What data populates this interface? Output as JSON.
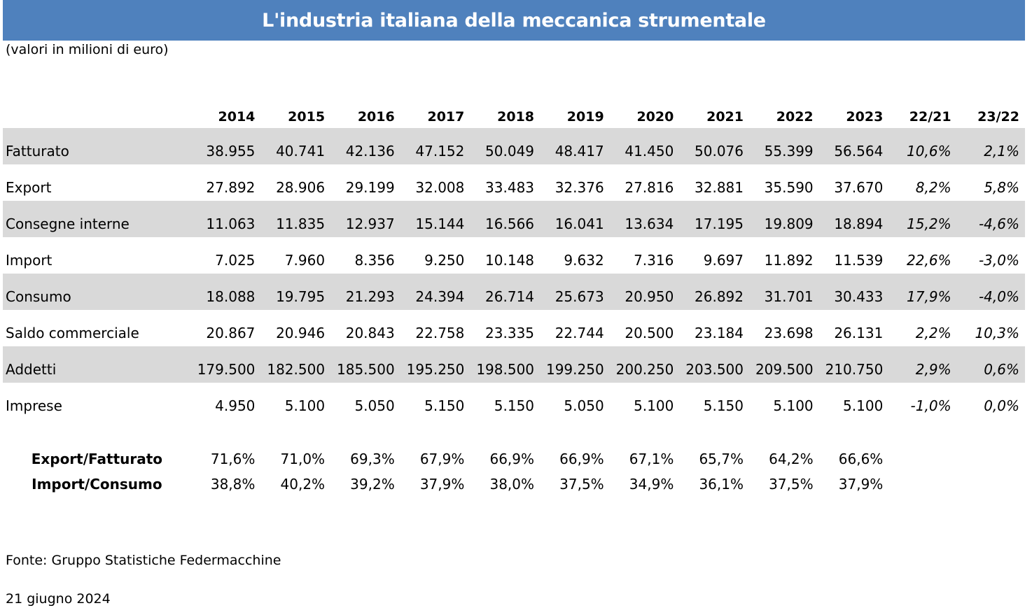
{
  "title": "L'industria italiana della meccanica strumentale",
  "subtitle": "(valori in milioni di euro)",
  "columns": [
    "2014",
    "2015",
    "2016",
    "2017",
    "2018",
    "2019",
    "2020",
    "2021",
    "2022",
    "2023",
    "22/21",
    "23/22"
  ],
  "rows": [
    {
      "label": "Fatturato",
      "values": [
        "38.955",
        "40.741",
        "42.136",
        "47.152",
        "50.049",
        "48.417",
        "41.450",
        "50.076",
        "55.399",
        "56.564",
        "10,6%",
        "2,1%"
      ]
    },
    {
      "label": "Export",
      "values": [
        "27.892",
        "28.906",
        "29.199",
        "32.008",
        "33.483",
        "32.376",
        "27.816",
        "32.881",
        "35.590",
        "37.670",
        "8,2%",
        "5,8%"
      ]
    },
    {
      "label": "Consegne interne",
      "values": [
        "11.063",
        "11.835",
        "12.937",
        "15.144",
        "16.566",
        "16.041",
        "13.634",
        "17.195",
        "19.809",
        "18.894",
        "15,2%",
        "-4,6%"
      ]
    },
    {
      "label": "Import",
      "values": [
        "7.025",
        "7.960",
        "8.356",
        "9.250",
        "10.148",
        "9.632",
        "7.316",
        "9.697",
        "11.892",
        "11.539",
        "22,6%",
        "-3,0%"
      ]
    },
    {
      "label": "Consumo",
      "values": [
        "18.088",
        "19.795",
        "21.293",
        "24.394",
        "26.714",
        "25.673",
        "20.950",
        "26.892",
        "31.701",
        "30.433",
        "17,9%",
        "-4,0%"
      ]
    },
    {
      "label": "Saldo commerciale",
      "values": [
        "20.867",
        "20.946",
        "20.843",
        "22.758",
        "23.335",
        "22.744",
        "20.500",
        "23.184",
        "23.698",
        "26.131",
        "2,2%",
        "10,3%"
      ]
    },
    {
      "label": "Addetti",
      "values": [
        "179.500",
        "182.500",
        "185.500",
        "195.250",
        "198.500",
        "199.250",
        "200.250",
        "203.500",
        "209.500",
        "210.750",
        "2,9%",
        "0,6%"
      ]
    },
    {
      "label": "Imprese",
      "values": [
        "4.950",
        "5.100",
        "5.050",
        "5.150",
        "5.150",
        "5.050",
        "5.100",
        "5.150",
        "5.100",
        "5.100",
        "-1,0%",
        "0,0%"
      ]
    }
  ],
  "ratios": [
    {
      "label": "Export/Fatturato",
      "values": [
        "71,6%",
        "71,0%",
        "69,3%",
        "67,9%",
        "66,9%",
        "66,9%",
        "67,1%",
        "65,7%",
        "64,2%",
        "66,6%"
      ]
    },
    {
      "label": "Import/Consumo",
      "values": [
        "38,8%",
        "40,2%",
        "39,2%",
        "37,9%",
        "38,0%",
        "37,5%",
        "34,9%",
        "36,1%",
        "37,5%",
        "37,9%"
      ]
    }
  ],
  "source": "Fonte: Gruppo Statistiche Federmacchine",
  "date": "21 giugno 2024",
  "colors": {
    "title_bar": "#4f81bd",
    "shaded_row": "#d9d9d9"
  }
}
